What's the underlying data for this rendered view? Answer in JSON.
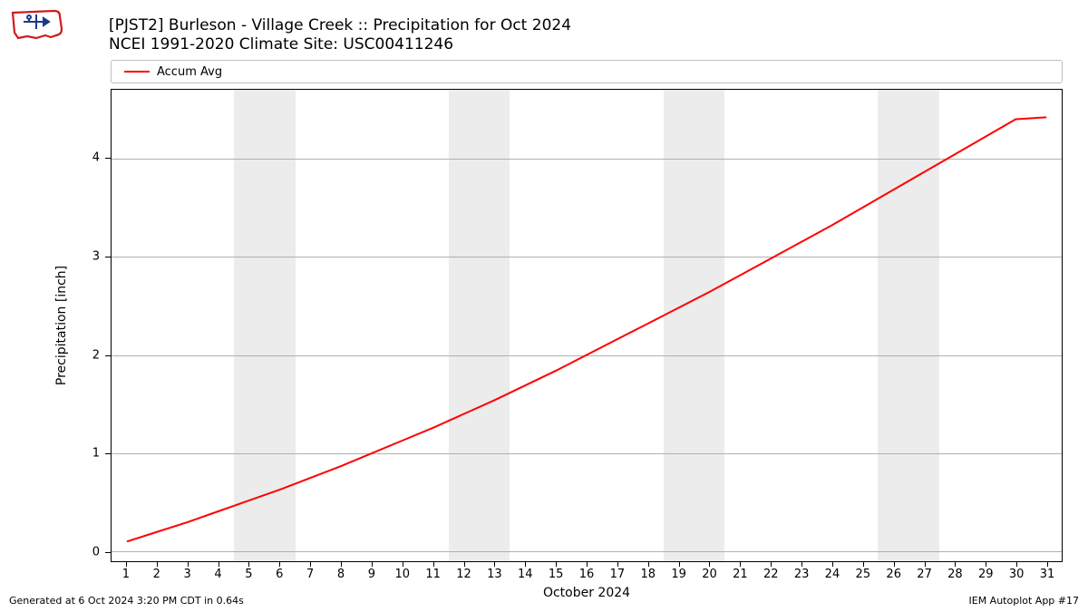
{
  "title_line1": "[PJST2] Burleson - Village Creek :: Precipitation for Oct 2024",
  "title_line2": "NCEI 1991-2020 Climate Site: USC00411246",
  "legend": {
    "label": "Accum Avg",
    "color": "#ff0000",
    "line_width": 2
  },
  "footer_left": "Generated at 6 Oct 2024 3:20 PM CDT in 0.64s",
  "footer_right": "IEM Autoplot App #17",
  "logo": {
    "outline_color": "#d01c1c",
    "accent_color": "#1a3a8a"
  },
  "chart": {
    "type": "line",
    "xlabel": "October 2024",
    "ylabel": "Precipitation [inch]",
    "background_color": "#ffffff",
    "grid_color": "#b0b0b0",
    "weekend_band_color": "#ececec",
    "border_color": "#000000",
    "xlim": [
      0.5,
      31.5
    ],
    "ylim": [
      -0.1,
      4.7
    ],
    "yticks": [
      0,
      1,
      2,
      3,
      4
    ],
    "xticks": [
      1,
      2,
      3,
      4,
      5,
      6,
      7,
      8,
      9,
      10,
      11,
      12,
      13,
      14,
      15,
      16,
      17,
      18,
      19,
      20,
      21,
      22,
      23,
      24,
      25,
      26,
      27,
      28,
      29,
      30,
      31
    ],
    "weekend_bands": [
      [
        4.5,
        6.5
      ],
      [
        11.5,
        13.5
      ],
      [
        18.5,
        20.5
      ],
      [
        25.5,
        27.5
      ]
    ],
    "label_fontsize": 14,
    "tick_fontsize": 13,
    "series": {
      "x": [
        1,
        2,
        3,
        4,
        5,
        6,
        7,
        8,
        9,
        10,
        11,
        12,
        13,
        14,
        15,
        16,
        17,
        18,
        19,
        20,
        21,
        22,
        23,
        24,
        25,
        26,
        27,
        28,
        29,
        30,
        31
      ],
      "y": [
        0.1,
        0.2,
        0.3,
        0.41,
        0.52,
        0.63,
        0.75,
        0.87,
        1.0,
        1.13,
        1.26,
        1.4,
        1.54,
        1.69,
        1.84,
        2.0,
        2.16,
        2.32,
        2.48,
        2.64,
        2.81,
        2.98,
        3.15,
        3.32,
        3.5,
        3.68,
        3.86,
        4.04,
        4.22,
        4.4,
        4.42
      ],
      "color": "#ff0000",
      "line_width": 2
    }
  }
}
